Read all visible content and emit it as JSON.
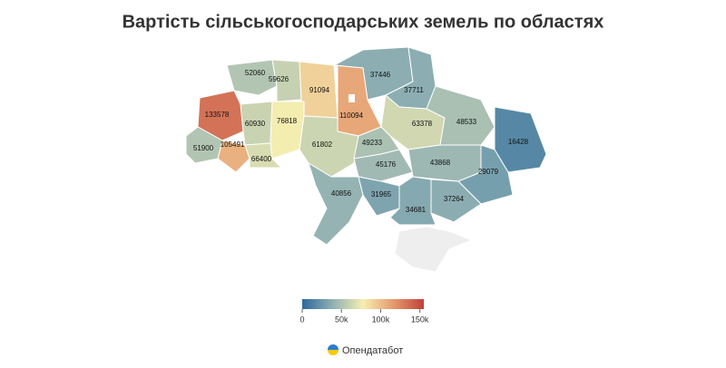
{
  "chart_data": {
    "type": "choropleth",
    "title": "Вартість сільськогосподарських земель по областях",
    "values": [
      52060,
      59626,
      91094,
      37446,
      37711,
      133578,
      60930,
      76818,
      110094,
      63378,
      48533,
      105491,
      61802,
      49233,
      16428,
      51900,
      66400,
      45176,
      43868,
      29079,
      40856,
      31965,
      37264,
      34681
    ],
    "colorscale": [
      "#2c6a9b",
      "#8fb0b3",
      "#f6eeb0",
      "#e59a6e",
      "#c0403a"
    ],
    "clim": [
      0,
      155000
    ],
    "ticks": [
      0,
      {
        "value": 50000,
        "label": "50k"
      },
      {
        "value": 100000,
        "label": "100k"
      },
      {
        "value": 150000,
        "label": "150k"
      }
    ]
  },
  "footer": "Опендатабот"
}
